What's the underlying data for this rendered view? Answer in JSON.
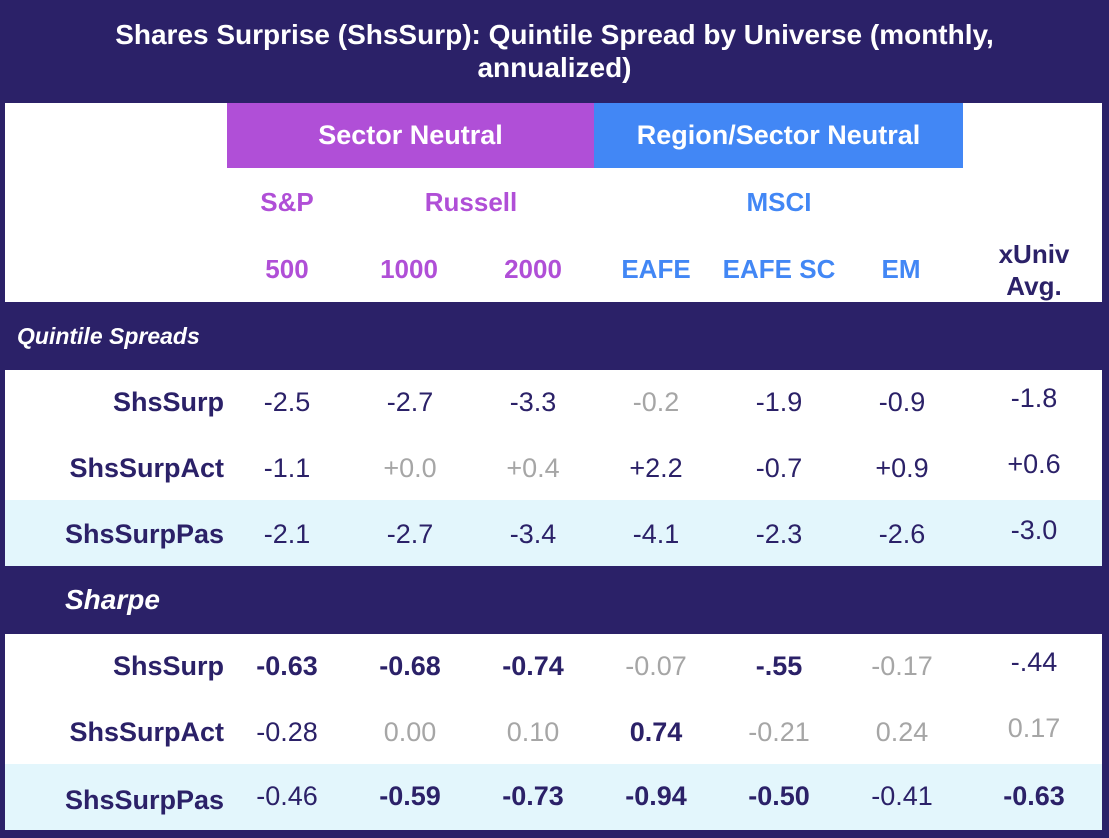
{
  "title": {
    "line1": "Shares Surprise (ShsSurp): Quintile Spread by Universe (monthly,",
    "line2": "annualized)"
  },
  "groups": {
    "sector": "Sector Neutral",
    "region": "Region/Sector Neutral"
  },
  "header_top": {
    "sp": "S&P",
    "russell": "Russell",
    "msci": "MSCI",
    "xuniv": "xUniv",
    "avg": "Avg."
  },
  "columns": [
    "500",
    "1000",
    "2000",
    "EAFE",
    "EAFE SC",
    "EM"
  ],
  "sections": {
    "quintile": "Quintile Spreads",
    "sharpe": "Sharpe"
  },
  "quintile_rows": [
    {
      "label": "ShsSurp",
      "values": [
        "-2.5",
        "-2.7",
        "-3.3",
        "-0.2",
        "-1.9",
        "-0.9",
        "-1.8"
      ]
    },
    {
      "label": "ShsSurpAct",
      "values": [
        "-1.1",
        "+0.0",
        "+0.4",
        "+2.2",
        "-0.7",
        "+0.9",
        "+0.6"
      ]
    },
    {
      "label": "ShsSurpPas",
      "values": [
        "-2.1",
        "-2.7",
        "-3.4",
        "-4.1",
        "-2.3",
        "-2.6",
        "-3.0"
      ]
    }
  ],
  "sharpe_rows": [
    {
      "label": "ShsSurp",
      "values": [
        "-0.63",
        "-0.68",
        "-0.74",
        "-0.07",
        "-.55",
        "-0.17",
        "-.44"
      ]
    },
    {
      "label": "ShsSurpAct",
      "values": [
        "-0.28",
        "0.00",
        "0.10",
        "0.74",
        "-0.21",
        "0.24",
        "0.17"
      ]
    },
    {
      "label": "ShsSurpPas",
      "values": [
        "-0.46",
        "-0.59",
        "-0.73",
        "-0.94",
        "-0.50",
        "-0.41",
        "-0.63"
      ]
    }
  ],
  "colors": {
    "navy": "#2b2168",
    "purple": "#b04fd7",
    "blue": "#4287f5",
    "muted_gray": "#a6a6a6",
    "alt_row": "#e3f6fc"
  }
}
